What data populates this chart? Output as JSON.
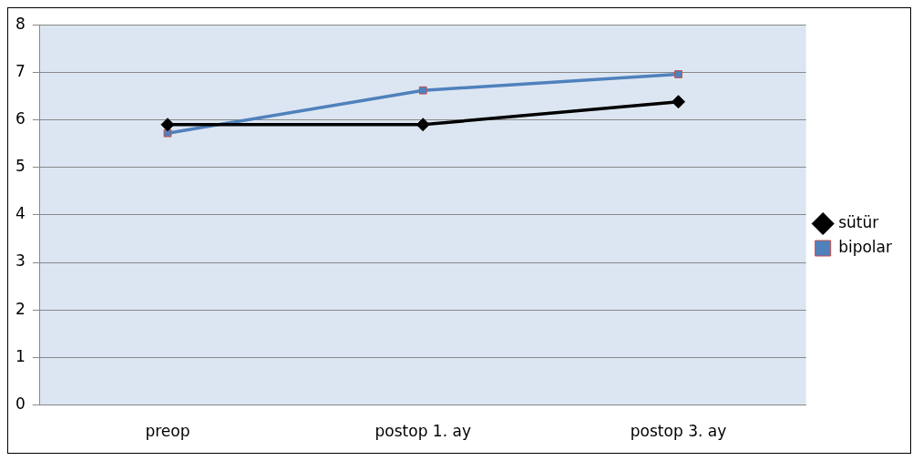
{
  "chart_data": {
    "type": "line",
    "categories": [
      "preop",
      "postop 1. ay",
      "postop 3. ay"
    ],
    "series": [
      {
        "name": "sütür",
        "color": "#000000",
        "marker": "diamond",
        "values": [
          5.9,
          5.9,
          6.38
        ]
      },
      {
        "name": "bipolar",
        "color": "#4f81bd",
        "marker": "square",
        "values": [
          5.72,
          6.62,
          6.96
        ]
      }
    ],
    "ylim": [
      0,
      8
    ],
    "yticks": [
      0,
      1,
      2,
      3,
      4,
      5,
      6,
      7,
      8
    ],
    "grid": "y",
    "legend": "right"
  }
}
